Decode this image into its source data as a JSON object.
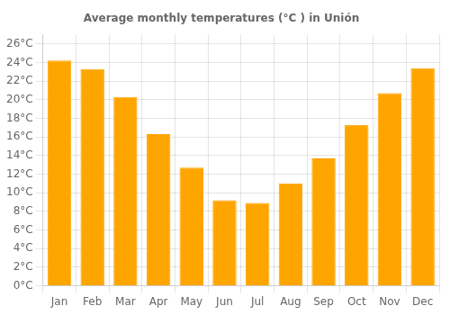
{
  "chart_data": {
    "type": "bar",
    "title": "Average monthly temperatures (°C ) in Unión",
    "categories": [
      "Jan",
      "Feb",
      "Mar",
      "Apr",
      "May",
      "Jun",
      "Jul",
      "Aug",
      "Sep",
      "Oct",
      "Nov",
      "Dec"
    ],
    "values": [
      24.2,
      23.3,
      20.3,
      16.3,
      12.7,
      9.2,
      8.9,
      11.0,
      13.7,
      17.3,
      20.7,
      23.4
    ],
    "color": "#FFA500",
    "ylim": [
      0,
      27
    ],
    "yticks": [
      {
        "value": 0,
        "label": "0°C"
      },
      {
        "value": 2,
        "label": "2°C"
      },
      {
        "value": 4,
        "label": "4°C"
      },
      {
        "value": 6,
        "label": "6°C"
      },
      {
        "value": 8,
        "label": "8°C"
      },
      {
        "value": 10,
        "label": "10°C"
      },
      {
        "value": 12,
        "label": "12°C"
      },
      {
        "value": 14,
        "label": "14°C"
      },
      {
        "value": 16,
        "label": "16°C"
      },
      {
        "value": 18,
        "label": "18°C"
      },
      {
        "value": 20,
        "label": "20°C"
      },
      {
        "value": 22,
        "label": "22°C"
      },
      {
        "value": 24,
        "label": "24°C"
      },
      {
        "value": 26,
        "label": "26°C"
      }
    ],
    "grid": true
  }
}
